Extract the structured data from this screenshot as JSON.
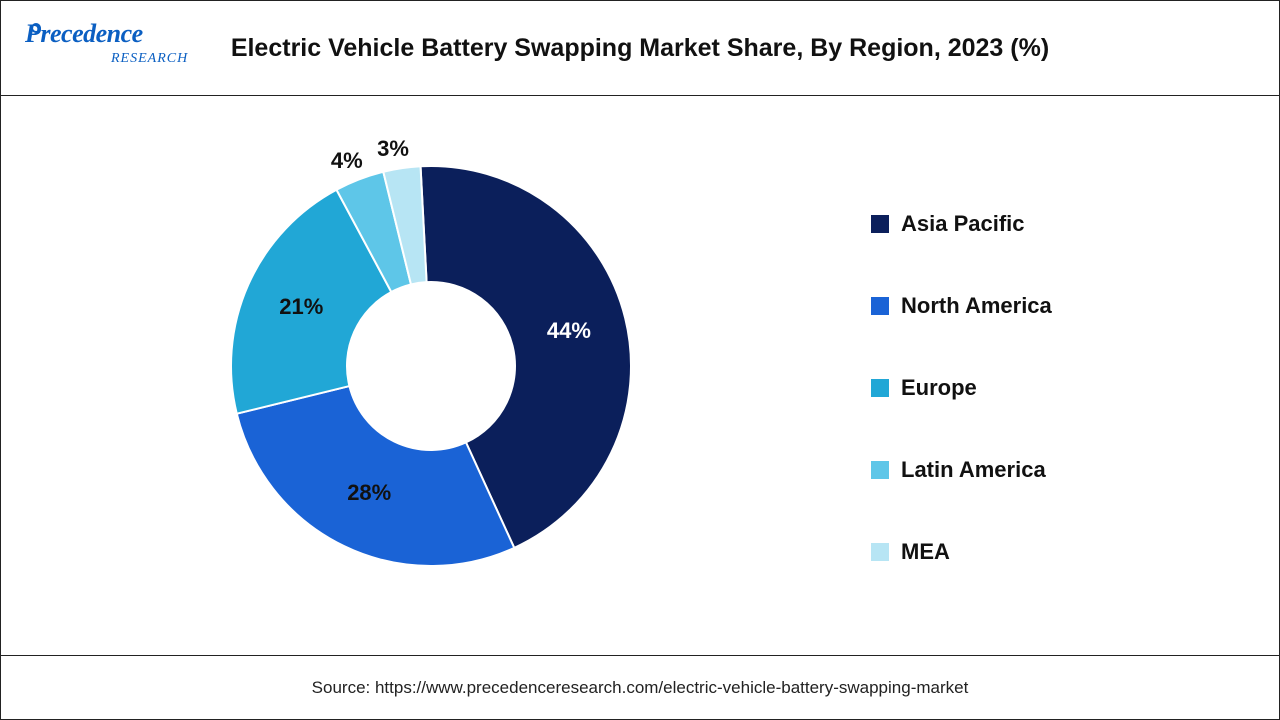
{
  "header": {
    "logo_main": "Precedence",
    "logo_sub": "RESEARCH",
    "title": "Electric Vehicle Battery Swapping Market Share, By Region, 2023 (%)"
  },
  "chart": {
    "type": "donut",
    "background_color": "#ffffff",
    "inner_radius_ratio": 0.42,
    "outer_radius": 200,
    "title_fontsize": 25,
    "label_fontsize": 22,
    "label_fontweight": 700,
    "legend_fontsize": 22,
    "legend_fontweight": 700,
    "series": [
      {
        "label": "Asia Pacific",
        "value": 44,
        "color": "#0b1f5b",
        "pct_label": "44%"
      },
      {
        "label": "North America",
        "value": 28,
        "color": "#1a63d6",
        "pct_label": "28%"
      },
      {
        "label": "Europe",
        "value": 21,
        "color": "#21a7d6",
        "pct_label": "21%"
      },
      {
        "label": "Latin America",
        "value": 4,
        "color": "#5ec6e8",
        "pct_label": "4%"
      },
      {
        "label": "MEA",
        "value": 3,
        "color": "#b7e5f4",
        "pct_label": "3%"
      }
    ],
    "start_angle_deg": -3
  },
  "footer": {
    "source": "Source: https://www.precedenceresearch.com/electric-vehicle-battery-swapping-market"
  }
}
